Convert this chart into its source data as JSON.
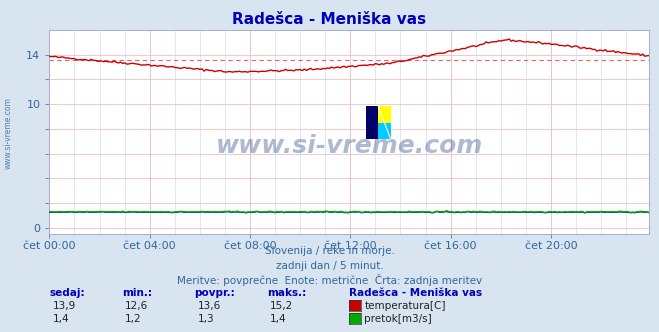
{
  "title": "Radešca - Meniška vas",
  "title_color": "#0000bb",
  "bg_color": "#d8e4f0",
  "plot_bg_color": "#ffffff",
  "grid_color_h": "#f0c0c0",
  "grid_color_v": "#c0d8f0",
  "xlabel_ticks": [
    "čet 00:00",
    "čet 04:00",
    "čet 08:00",
    "čet 12:00",
    "čet 16:00",
    "čet 20:00"
  ],
  "yticks": [
    0,
    2,
    4,
    6,
    8,
    10,
    12,
    14
  ],
  "ylim": [
    -0.5,
    16.0
  ],
  "xlim": [
    0,
    287
  ],
  "temp_color": "#cc0000",
  "flow_color": "#00aa00",
  "flow_color2": "#0000cc",
  "watermark_color": "#1a3a7a",
  "subtitle1": "Slovenija / reke in morje.",
  "subtitle2": "zadnji dan / 5 minut.",
  "subtitle3": "Meritve: povprečne  Enote: metrične  Črta: zadnja meritev",
  "legend_title": "Radešca - Meniška vas",
  "stats_headers": [
    "sedaj:",
    "min.:",
    "povpr.:",
    "maks.:"
  ],
  "stats_temp": [
    "13,9",
    "12,6",
    "13,6",
    "15,2"
  ],
  "stats_flow": [
    "1,4",
    "1,2",
    "1,3",
    "1,4"
  ],
  "legend_temp": "temperatura[C]",
  "legend_flow": "pretok[m3/s]",
  "text_color": "#336699",
  "avg_temp_line": 13.6,
  "avg_flow_line": 1.3,
  "tick_positions": [
    0,
    48,
    96,
    144,
    192,
    240
  ],
  "logo_yellow": "#ffff00",
  "logo_cyan": "#00ccff",
  "logo_blue": "#000066"
}
